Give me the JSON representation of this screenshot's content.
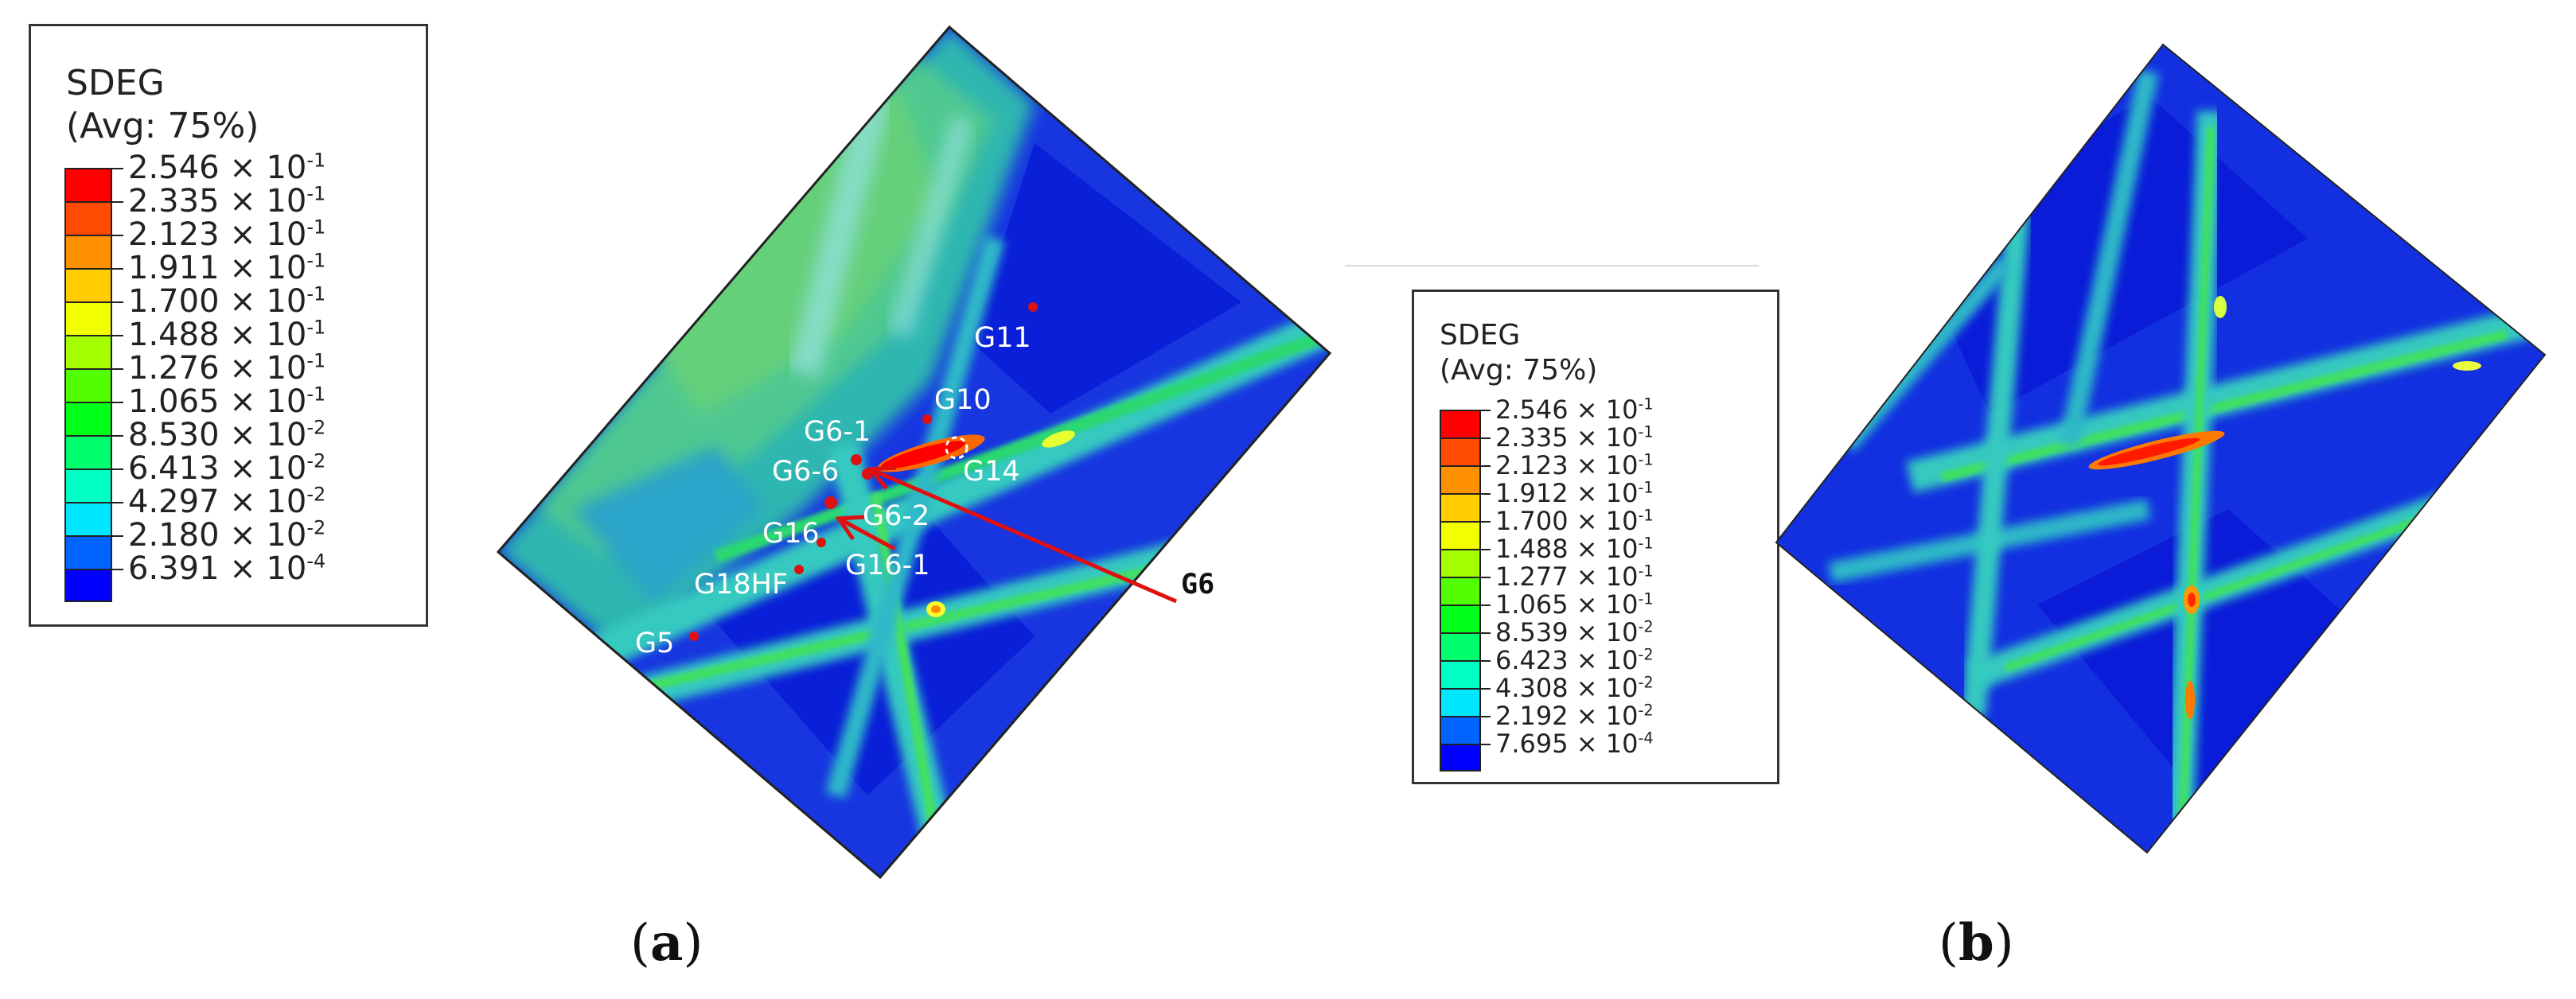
{
  "legend_a": {
    "title": "SDEG",
    "subtitle": "(Avg: 75%)",
    "entries": [
      {
        "mantissa": "2.546",
        "exp": "-1",
        "color": "#ff0000"
      },
      {
        "mantissa": "2.335",
        "exp": "-1",
        "color": "#ff4b00"
      },
      {
        "mantissa": "2.123",
        "exp": "-1",
        "color": "#ff9100"
      },
      {
        "mantissa": "1.911",
        "exp": "-1",
        "color": "#ffcd00"
      },
      {
        "mantissa": "1.700",
        "exp": "-1",
        "color": "#f2ff00"
      },
      {
        "mantissa": "1.488",
        "exp": "-1",
        "color": "#a6ff00"
      },
      {
        "mantissa": "1.276",
        "exp": "-1",
        "color": "#52ff00"
      },
      {
        "mantissa": "1.065",
        "exp": "-1",
        "color": "#00ff19"
      },
      {
        "mantissa": "8.530",
        "exp": "-2",
        "color": "#00ff6e"
      },
      {
        "mantissa": "6.413",
        "exp": "-2",
        "color": "#00ffc2"
      },
      {
        "mantissa": "4.297",
        "exp": "-2",
        "color": "#00e6ff"
      },
      {
        "mantissa": "2.180",
        "exp": "-2",
        "color": "#0064ff"
      },
      {
        "mantissa": "6.391",
        "exp": "-4",
        "color": "#0000ff"
      }
    ]
  },
  "legend_b": {
    "title": "SDEG",
    "subtitle": "(Avg: 75%)",
    "entries": [
      {
        "mantissa": "2.546",
        "exp": "-1",
        "color": "#ff0000"
      },
      {
        "mantissa": "2.335",
        "exp": "-1",
        "color": "#ff4b00"
      },
      {
        "mantissa": "2.123",
        "exp": "-1",
        "color": "#ff9100"
      },
      {
        "mantissa": "1.912",
        "exp": "-1",
        "color": "#ffcd00"
      },
      {
        "mantissa": "1.700",
        "exp": "-1",
        "color": "#f2ff00"
      },
      {
        "mantissa": "1.488",
        "exp": "-1",
        "color": "#a6ff00"
      },
      {
        "mantissa": "1.277",
        "exp": "-1",
        "color": "#52ff00"
      },
      {
        "mantissa": "1.065",
        "exp": "-1",
        "color": "#00ff19"
      },
      {
        "mantissa": "8.539",
        "exp": "-2",
        "color": "#00ff6e"
      },
      {
        "mantissa": "6.423",
        "exp": "-2",
        "color": "#00ffc2"
      },
      {
        "mantissa": "4.308",
        "exp": "-2",
        "color": "#00e6ff"
      },
      {
        "mantissa": "2.192",
        "exp": "-2",
        "color": "#0064ff"
      },
      {
        "mantissa": "7.695",
        "exp": "-4",
        "color": "#0000ff"
      }
    ]
  },
  "panel_a": {
    "labels": [
      "G11",
      "G10",
      "G6-1",
      "G6-6",
      "G14",
      "G6-2",
      "G16",
      "G16-1",
      "G18HF",
      "G5",
      "G6"
    ]
  },
  "captions": {
    "a": "a",
    "b": "b"
  }
}
